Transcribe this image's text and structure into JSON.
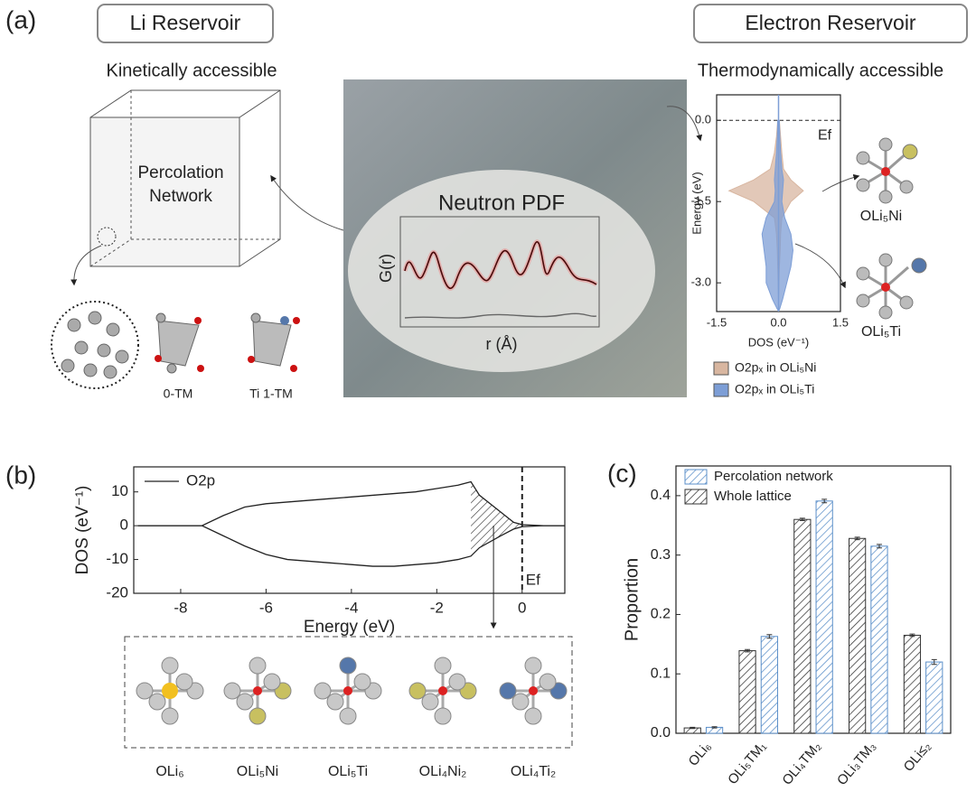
{
  "panel_a": {
    "label": "(a)",
    "li_reservoir": "Li Reservoir",
    "li_subtitle": "Kinetically accessible",
    "percolation": [
      "Percolation",
      "Network"
    ],
    "neutron_pdf": "Neutron PDF",
    "g_r": "G(r)",
    "r_axis": "r (Å)",
    "sites": [
      "0-TM",
      "Ti 1-TM"
    ],
    "electron_reservoir": "Electron Reservoir",
    "electron_subtitle": "Thermodynamically accessible",
    "clusters": [
      "OLi₅Ni",
      "OLi₅Ti"
    ]
  },
  "panel_b": {
    "label": "(b)",
    "structures": [
      "OLi₆",
      "OLi₅Ni",
      "OLi₅Ti",
      "OLi₄Ni₂",
      "OLi₄Ti₂"
    ]
  },
  "panel_c": {
    "label": "(c)"
  },
  "chart_data": [
    {
      "type": "area",
      "xlabel": "DOS (eV⁻¹)",
      "ylabel": "Energy (eV)",
      "annotation": "Ef",
      "xlim": [
        -1.5,
        1.5
      ],
      "xticks": [
        -1.5,
        {
          "value": 0,
          "label": "0.0"
        },
        1.5
      ],
      "ylim": [
        -3.53,
        0.47
      ],
      "yticks": [
        {
          "value": 0,
          "label": "0.0"
        },
        -1.5,
        {
          "value": -3,
          "label": "-3.0"
        }
      ],
      "energy": [
        0,
        -0.3,
        -0.6,
        -0.9,
        -1.1,
        -1.3,
        -1.5,
        -1.8,
        -2.1,
        -2.4,
        -2.7,
        -3.0,
        -3.3,
        -3.5
      ],
      "series": [
        {
          "name": "O2pₓ in OLi₅Ni",
          "color": "#d8b6a0",
          "values": [
            0.02,
            0.05,
            0.08,
            0.12,
            0.3,
            0.6,
            0.3,
            0.08,
            0.05,
            0.04,
            0.02,
            0.01,
            0,
            0
          ],
          "values_down": [
            -0.02,
            -0.05,
            -0.1,
            -0.2,
            -0.6,
            -1.2,
            -0.6,
            -0.1,
            -0.05,
            -0.03,
            -0.02,
            -0.01,
            0,
            0
          ]
        },
        {
          "name": "O2pₓ in OLi₅Ti",
          "color": "#7d9ed6",
          "values": [
            0.02,
            0.03,
            0.05,
            0.08,
            0.12,
            0.1,
            0.08,
            0.15,
            0.3,
            0.35,
            0.3,
            0.2,
            0.1,
            0.02
          ],
          "values_down": [
            -0.02,
            -0.03,
            -0.05,
            -0.08,
            -0.1,
            -0.08,
            -0.1,
            -0.3,
            -0.4,
            -0.35,
            -0.3,
            -0.3,
            -0.15,
            -0.02
          ]
        }
      ]
    },
    {
      "type": "line",
      "xlabel": "Energy (eV)",
      "ylabel": "DOS (eV⁻¹)",
      "annotation": "Ef",
      "xlim": [
        -9.1,
        1
      ],
      "xticks": [
        -8,
        -6,
        -4,
        -2,
        0
      ],
      "ylim": [
        -20,
        17.4
      ],
      "yticks": [
        -20,
        -10,
        0,
        10
      ],
      "x": [
        -9,
        -8,
        -7.5,
        -7,
        -6.5,
        -6,
        -5.5,
        -5,
        -4.5,
        -4,
        -3.5,
        -3,
        -2.5,
        -2,
        -1.5,
        -1.2,
        -1,
        -0.5,
        -0.2,
        0,
        0.5,
        1
      ],
      "series": [
        {
          "name": "O2p",
          "color": "#222222",
          "values": [
            0,
            0,
            0,
            3,
            5.5,
            6.5,
            7,
            7.5,
            8,
            8.5,
            9,
            9.5,
            10,
            11,
            12,
            13,
            9,
            4,
            1,
            0.3,
            0,
            0
          ],
          "values_down": [
            0,
            0,
            0,
            -3,
            -6,
            -8.5,
            -10,
            -10.5,
            -11,
            -11.5,
            -12,
            -12,
            -11.5,
            -11,
            -10,
            -9,
            -6.5,
            -3,
            -1,
            -0.3,
            0,
            0
          ]
        }
      ]
    },
    {
      "type": "bar",
      "ylabel": "Proportion",
      "categories": [
        "OLi₆",
        "OLi₅TM₁",
        "OLi₄TM₂",
        "OLi₃TM₃",
        "OLi≤₂"
      ],
      "ylim": [
        0,
        0.45
      ],
      "yticks": [
        {
          "value": 0,
          "label": "0.0"
        },
        0.1,
        0.2,
        0.3,
        0.4
      ],
      "series": [
        {
          "name": "Percolation network",
          "color": "#5b8fc9",
          "values": [
            0.01,
            0.163,
            0.391,
            0.315,
            0.12
          ],
          "errors": [
            0.001,
            0.003,
            0.003,
            0.003,
            0.004
          ]
        },
        {
          "name": "Whole lattice",
          "color": "#333333",
          "values": [
            0.009,
            0.139,
            0.36,
            0.328,
            0.165
          ],
          "errors": [
            0.001,
            0.002,
            0.002,
            0.002,
            0.002
          ]
        }
      ]
    }
  ]
}
